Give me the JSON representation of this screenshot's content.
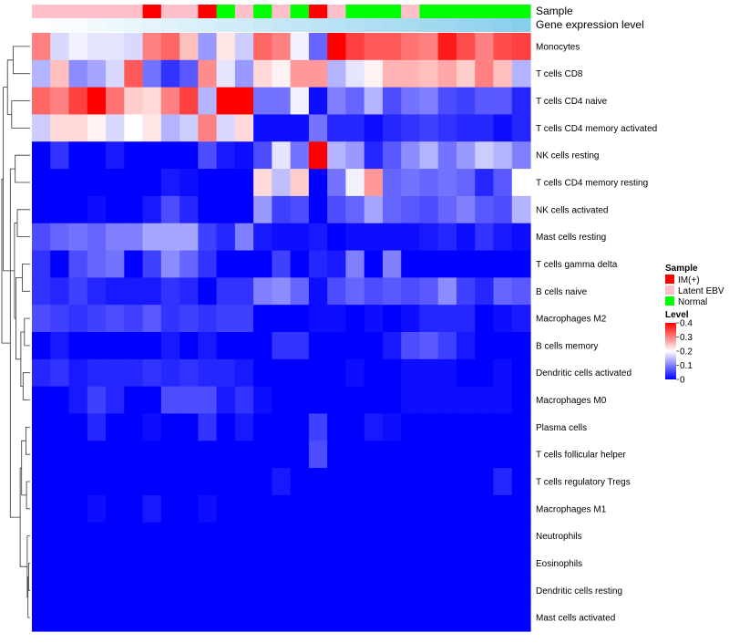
{
  "chart_data": {
    "type": "heatmap",
    "title": "",
    "annotation_rows": [
      "Sample",
      "Gene expression level"
    ],
    "row_labels": [
      "Monocytes",
      "T cells CD8",
      "T cells CD4 naive",
      "T cells CD4 memory activated",
      "NK cells resting",
      "T cells CD4 memory resting",
      "NK cells activated",
      "Mast cells resting",
      "T cells gamma delta",
      "B cells naive",
      "Macrophages M2",
      "B cells memory",
      "Dendritic cells activated",
      "Macrophages M0",
      "Plasma cells",
      "T cells follicular helper",
      "T cells regulatory  Tregs",
      "Macrophages M1",
      "Neutrophils",
      "Eosinophils",
      "Dendritic cells resting",
      "Mast cells activated"
    ],
    "sample_groups": [
      "Latent EBV",
      "Latent EBV",
      "Latent EBV",
      "Latent EBV",
      "Latent EBV",
      "Latent EBV",
      "IM(+)",
      "Latent EBV",
      "Latent EBV",
      "IM(+)",
      "Normal",
      "Latent EBV",
      "Normal",
      "Latent EBV",
      "Normal",
      "IM(+)",
      "Latent EBV",
      "Normal",
      "Normal",
      "Normal",
      "Latent EBV",
      "Normal",
      "Normal",
      "Normal",
      "Normal",
      "Normal",
      "Normal"
    ],
    "expression_level": [
      0.0,
      0.04,
      0.07,
      0.11,
      0.15,
      0.19,
      0.22,
      0.26,
      0.3,
      0.33,
      0.37,
      0.41,
      0.44,
      0.48,
      0.52,
      0.56,
      0.59,
      0.63,
      0.67,
      0.7,
      0.74,
      0.78,
      0.81,
      0.85,
      0.89,
      0.93,
      1.0
    ],
    "values": [
      [
        0.3,
        0.17,
        0.19,
        0.18,
        0.18,
        0.17,
        0.3,
        0.32,
        0.25,
        0.12,
        0.22,
        0.16,
        0.32,
        0.3,
        0.19,
        0.08,
        0.4,
        0.35,
        0.33,
        0.33,
        0.31,
        0.3,
        0.38,
        0.34,
        0.3,
        0.34,
        0.35
      ],
      [
        0.14,
        0.25,
        0.11,
        0.13,
        0.17,
        0.33,
        0.09,
        0.04,
        0.07,
        0.29,
        0.18,
        0.12,
        0.23,
        0.21,
        0.28,
        0.28,
        0.14,
        0.18,
        0.21,
        0.26,
        0.26,
        0.25,
        0.27,
        0.24,
        0.3,
        0.25,
        0.14
      ],
      [
        0.32,
        0.3,
        0.35,
        0.4,
        0.31,
        0.24,
        0.23,
        0.3,
        0.35,
        0.14,
        0.4,
        0.4,
        0.09,
        0.09,
        0.19,
        0.01,
        0.1,
        0.08,
        0.14,
        0.06,
        0.09,
        0.1,
        0.06,
        0.05,
        0.07,
        0.07,
        0.03
      ],
      [
        0.16,
        0.23,
        0.23,
        0.21,
        0.17,
        0.2,
        0.22,
        0.14,
        0.16,
        0.3,
        0.17,
        0.23,
        0.01,
        0.01,
        0.01,
        0.09,
        0.03,
        0.03,
        0.01,
        0.03,
        0.04,
        0.05,
        0.04,
        0.03,
        0.03,
        0.01,
        0.03
      ],
      [
        0.0,
        0.04,
        0.0,
        0.0,
        0.02,
        0.0,
        0.0,
        0.0,
        0.0,
        0.06,
        0.02,
        0.01,
        0.06,
        0.18,
        0.09,
        0.4,
        0.14,
        0.12,
        0.03,
        0.07,
        0.11,
        0.14,
        0.09,
        0.12,
        0.16,
        0.14,
        0.1
      ],
      [
        0.0,
        0.0,
        0.0,
        0.0,
        0.0,
        0.0,
        0.0,
        0.02,
        0.01,
        0.0,
        0.0,
        0.0,
        0.23,
        0.15,
        0.24,
        0.0,
        0.09,
        0.19,
        0.28,
        0.08,
        0.09,
        0.08,
        0.09,
        0.08,
        0.03,
        0.07,
        0.2
      ],
      [
        0.0,
        0.0,
        0.0,
        0.01,
        0.0,
        0.0,
        0.02,
        0.06,
        0.03,
        0.0,
        0.0,
        0.0,
        0.12,
        0.05,
        0.06,
        0.0,
        0.06,
        0.08,
        0.13,
        0.08,
        0.07,
        0.06,
        0.08,
        0.1,
        0.07,
        0.06,
        0.14
      ],
      [
        0.06,
        0.08,
        0.09,
        0.08,
        0.1,
        0.1,
        0.13,
        0.13,
        0.13,
        0.05,
        0.03,
        0.1,
        0.02,
        0.01,
        0.01,
        0.02,
        0.0,
        0.01,
        0.01,
        0.01,
        0.01,
        0.02,
        0.03,
        0.01,
        0.04,
        0.02,
        0.01
      ],
      [
        0.04,
        0.0,
        0.06,
        0.08,
        0.09,
        0.0,
        0.05,
        0.11,
        0.08,
        0.04,
        0.0,
        0.0,
        0.0,
        0.05,
        0.0,
        0.03,
        0.02,
        0.1,
        0.0,
        0.1,
        0.0,
        0.0,
        0.0,
        0.0,
        0.0,
        0.0,
        0.0
      ],
      [
        0.04,
        0.03,
        0.05,
        0.03,
        0.02,
        0.02,
        0.02,
        0.04,
        0.03,
        0.0,
        0.04,
        0.04,
        0.1,
        0.11,
        0.08,
        0.01,
        0.06,
        0.08,
        0.06,
        0.07,
        0.06,
        0.07,
        0.11,
        0.05,
        0.03,
        0.08,
        0.07
      ],
      [
        0.06,
        0.05,
        0.04,
        0.05,
        0.06,
        0.05,
        0.07,
        0.04,
        0.05,
        0.04,
        0.05,
        0.05,
        0.0,
        0.0,
        0.0,
        0.01,
        0.01,
        0.0,
        0.01,
        0.0,
        0.01,
        0.03,
        0.03,
        0.03,
        0.0,
        0.01,
        0.02
      ],
      [
        0.0,
        0.02,
        0.0,
        0.0,
        0.0,
        0.0,
        0.0,
        0.02,
        0.0,
        0.02,
        0.0,
        0.0,
        0.0,
        0.04,
        0.04,
        0.0,
        0.0,
        0.0,
        0.0,
        0.02,
        0.06,
        0.07,
        0.05,
        0.02,
        0.0,
        0.0,
        0.0
      ],
      [
        0.03,
        0.04,
        0.02,
        0.03,
        0.03,
        0.03,
        0.04,
        0.03,
        0.04,
        0.03,
        0.03,
        0.02,
        0.0,
        0.0,
        0.0,
        0.0,
        0.0,
        0.01,
        0.0,
        0.0,
        0.01,
        0.01,
        0.01,
        0.0,
        0.0,
        0.01,
        0.0
      ],
      [
        0.0,
        0.0,
        0.02,
        0.05,
        0.03,
        0.0,
        0.0,
        0.06,
        0.06,
        0.06,
        0.02,
        0.04,
        0.01,
        0.0,
        0.0,
        0.0,
        0.0,
        0.0,
        0.0,
        0.0,
        0.01,
        0.01,
        0.01,
        0.01,
        0.01,
        0.01,
        0.0
      ],
      [
        0.0,
        0.0,
        0.0,
        0.03,
        0.0,
        0.0,
        0.01,
        0.0,
        0.0,
        0.04,
        0.0,
        0.02,
        0.0,
        0.0,
        0.0,
        0.05,
        0.0,
        0.0,
        0.02,
        0.01,
        0.0,
        0.0,
        0.0,
        0.0,
        0.0,
        0.0,
        0.0
      ],
      [
        0.0,
        0.0,
        0.0,
        0.0,
        0.0,
        0.0,
        0.0,
        0.0,
        0.0,
        0.0,
        0.0,
        0.0,
        0.0,
        0.0,
        0.0,
        0.06,
        0.0,
        0.0,
        0.0,
        0.0,
        0.0,
        0.0,
        0.0,
        0.0,
        0.0,
        0.0,
        0.0
      ],
      [
        0.0,
        0.0,
        0.0,
        0.0,
        0.0,
        0.0,
        0.0,
        0.0,
        0.0,
        0.0,
        0.0,
        0.0,
        0.0,
        0.02,
        0.0,
        0.0,
        0.0,
        0.0,
        0.0,
        0.0,
        0.0,
        0.0,
        0.0,
        0.0,
        0.0,
        0.03,
        0.0
      ],
      [
        0.0,
        0.0,
        0.0,
        0.01,
        0.0,
        0.0,
        0.02,
        0.0,
        0.0,
        0.01,
        0.0,
        0.0,
        0.0,
        0.0,
        0.0,
        0.0,
        0.0,
        0.0,
        0.0,
        0.0,
        0.0,
        0.0,
        0.0,
        0.0,
        0.0,
        0.0,
        0.0
      ],
      [
        0.0,
        0.0,
        0.0,
        0.0,
        0.0,
        0.0,
        0.0,
        0.0,
        0.0,
        0.0,
        0.0,
        0.0,
        0.0,
        0.0,
        0.0,
        0.0,
        0.0,
        0.0,
        0.0,
        0.0,
        0.0,
        0.0,
        0.0,
        0.0,
        0.0,
        0.0,
        0.0
      ],
      [
        0.0,
        0.0,
        0.0,
        0.0,
        0.0,
        0.0,
        0.0,
        0.0,
        0.0,
        0.0,
        0.0,
        0.0,
        0.0,
        0.0,
        0.0,
        0.0,
        0.0,
        0.0,
        0.0,
        0.0,
        0.0,
        0.0,
        0.0,
        0.0,
        0.0,
        0.0,
        0.0
      ],
      [
        0.0,
        0.0,
        0.0,
        0.0,
        0.0,
        0.0,
        0.0,
        0.0,
        0.0,
        0.0,
        0.0,
        0.0,
        0.0,
        0.0,
        0.0,
        0.0,
        0.0,
        0.0,
        0.0,
        0.0,
        0.0,
        0.0,
        0.0,
        0.0,
        0.0,
        0.0,
        0.0
      ],
      [
        0.0,
        0.0,
        0.0,
        0.0,
        0.0,
        0.0,
        0.0,
        0.0,
        0.0,
        0.0,
        0.0,
        0.0,
        0.0,
        0.0,
        0.0,
        0.0,
        0.0,
        0.0,
        0.0,
        0.0,
        0.0,
        0.0,
        0.0,
        0.0,
        0.0,
        0.0,
        0.0
      ]
    ],
    "color_scale": {
      "min": 0,
      "max": 0.4,
      "stops": [
        {
          "value": 0,
          "color": "#0000ff"
        },
        {
          "value": 0.2,
          "color": "#ffffff"
        },
        {
          "value": 0.4,
          "color": "#ff0000"
        }
      ]
    },
    "legend": {
      "sample_title": "Sample",
      "sample_items": [
        {
          "label": "IM(+)",
          "color": "#ff0000"
        },
        {
          "label": "Latent EBV",
          "color": "#ffc0cb"
        },
        {
          "label": "Normal",
          "color": "#00ff00"
        }
      ],
      "level_title": "Level",
      "level_ticks": [
        0.4,
        0.3,
        0.2,
        0.1,
        0
      ],
      "level_tick_labels": [
        "0.4",
        "0.3",
        "0.2",
        "0.1",
        "0"
      ],
      "placement": "right"
    },
    "expression_colors": {
      "low": "#ffffff",
      "high": "#87ceeb"
    },
    "dendrogram": {
      "type": "row",
      "merges": [
        [
          -1,
          -2,
          1.2
        ],
        [
          -3,
          -4,
          1.3
        ],
        [
          -11,
          -12,
          0.4
        ],
        [
          -15,
          -16,
          0.3
        ],
        [
          -17,
          -18,
          0.25
        ],
        [
          -20,
          -21,
          0.1
        ],
        [
          -22,
          6,
          0.15
        ],
        [
          -19,
          7,
          0.2
        ],
        [
          -13,
          -14,
          0.5
        ],
        [
          -9,
          -10,
          0.55
        ],
        [
          3,
          9,
          0.65
        ],
        [
          4,
          5,
          0.6
        ],
        [
          12,
          8,
          0.7
        ],
        [
          -7,
          -8,
          0.9
        ],
        [
          10,
          11,
          1.0
        ],
        [
          -5,
          -6,
          1.05
        ],
        [
          14,
          15,
          1.1
        ],
        [
          16,
          13,
          1.4
        ],
        [
          1,
          2,
          1.6
        ],
        [
          19,
          17,
          1.9
        ],
        [
          20,
          18,
          2.0
        ]
      ]
    }
  }
}
